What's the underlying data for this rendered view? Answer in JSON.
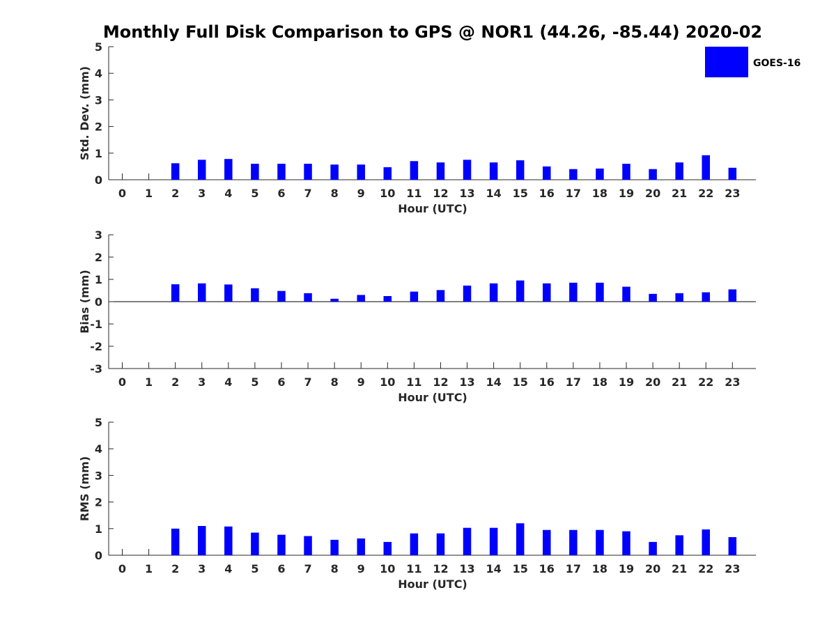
{
  "chart_data": {
    "title": "Monthly Full Disk Comparison to GPS @ NOR1 (44.26, -85.44) 2020-02",
    "legend": {
      "label": "GOES-16",
      "color": "#0000ff",
      "placement": "top-right"
    },
    "panels": [
      {
        "type": "bar",
        "name": "std-dev",
        "title": "",
        "xlabel": "Hour (UTC)",
        "ylabel": "Std. Dev. (mm)",
        "ylim": [
          0,
          5
        ],
        "yticks": [
          0,
          1,
          2,
          3,
          4,
          5
        ],
        "categories": [
          0,
          1,
          2,
          3,
          4,
          5,
          6,
          7,
          8,
          9,
          10,
          11,
          12,
          13,
          14,
          15,
          16,
          17,
          18,
          19,
          20,
          21,
          22,
          23
        ],
        "series": [
          {
            "name": "GOES-16",
            "values": [
              null,
              null,
              0.62,
              0.75,
              0.78,
              0.6,
              0.6,
              0.6,
              0.57,
              0.57,
              0.47,
              0.7,
              0.65,
              0.75,
              0.65,
              0.73,
              0.5,
              0.4,
              0.42,
              0.6,
              0.4,
              0.65,
              0.92,
              0.45
            ]
          }
        ]
      },
      {
        "type": "bar",
        "name": "bias",
        "title": "",
        "xlabel": "Hour (UTC)",
        "ylabel": "Bias (mm)",
        "ylim": [
          -3,
          3
        ],
        "yticks": [
          -3,
          -2,
          -1,
          0,
          1,
          2,
          3
        ],
        "categories": [
          0,
          1,
          2,
          3,
          4,
          5,
          6,
          7,
          8,
          9,
          10,
          11,
          12,
          13,
          14,
          15,
          16,
          17,
          18,
          19,
          20,
          21,
          22,
          23
        ],
        "series": [
          {
            "name": "GOES-16",
            "values": [
              null,
              null,
              0.78,
              0.82,
              0.77,
              0.6,
              0.48,
              0.38,
              0.13,
              0.3,
              0.25,
              0.45,
              0.52,
              0.72,
              0.82,
              0.95,
              0.82,
              0.85,
              0.85,
              0.67,
              0.35,
              0.38,
              0.42,
              0.55
            ]
          }
        ]
      },
      {
        "type": "bar",
        "name": "rms",
        "title": "",
        "xlabel": "Hour (UTC)",
        "ylabel": "RMS (mm)",
        "ylim": [
          0,
          5
        ],
        "yticks": [
          0,
          1,
          2,
          3,
          4,
          5
        ],
        "categories": [
          0,
          1,
          2,
          3,
          4,
          5,
          6,
          7,
          8,
          9,
          10,
          11,
          12,
          13,
          14,
          15,
          16,
          17,
          18,
          19,
          20,
          21,
          22,
          23
        ],
        "series": [
          {
            "name": "GOES-16",
            "values": [
              null,
              null,
              1.0,
              1.1,
              1.08,
              0.85,
              0.77,
              0.72,
              0.58,
              0.63,
              0.5,
              0.82,
              0.82,
              1.03,
              1.03,
              1.2,
              0.95,
              0.95,
              0.95,
              0.9,
              0.5,
              0.75,
              0.97,
              0.68
            ]
          }
        ]
      }
    ]
  }
}
